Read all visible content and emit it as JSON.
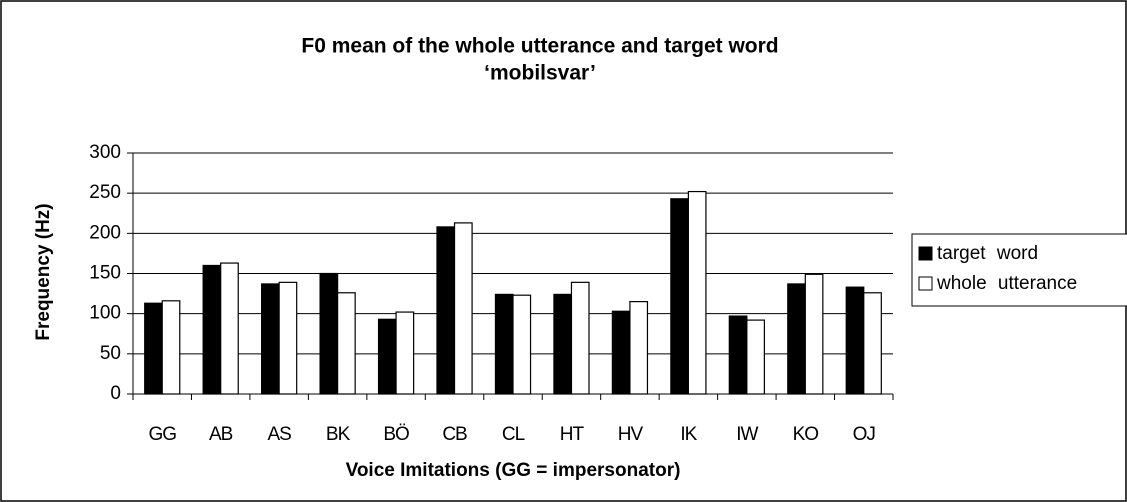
{
  "chart_data": {
    "type": "bar",
    "title": [
      "F0 mean of the whole utterance and target word",
      "‘mobilsvar’"
    ],
    "xlabel": "Voice Imitations (GG = impersonator)",
    "ylabel": "Frequency (Hz)",
    "categories": [
      "GG",
      "AB",
      "AS",
      "BK",
      "BÖ",
      "CB",
      "CL",
      "HT",
      "HV",
      "IK",
      "IW",
      "KO",
      "OJ"
    ],
    "series": [
      {
        "name": "target word",
        "color": "#000000",
        "values": [
          113,
          160,
          137,
          150,
          93,
          208,
          124,
          124,
          103,
          243,
          97,
          137,
          133
        ]
      },
      {
        "name": "whole utterance",
        "color": "#ffffff",
        "values": [
          116,
          163,
          139,
          126,
          102,
          213,
          123,
          139,
          115,
          252,
          92,
          149,
          126
        ]
      }
    ],
    "ylim": [
      0,
      300
    ],
    "yticks": [
      0,
      50,
      100,
      150,
      200,
      250,
      300
    ],
    "grid": true,
    "legend": "right"
  }
}
